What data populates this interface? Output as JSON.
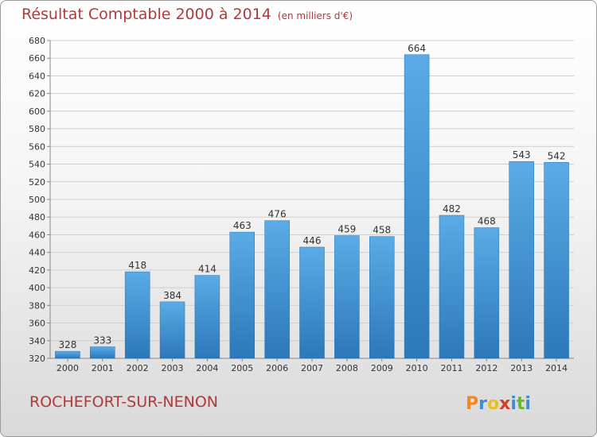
{
  "header": {
    "title": "Résultat Comptable 2000 à 2014",
    "subtitle": "(en milliers d'€)"
  },
  "footer": {
    "commune": "ROCHEFORT-SUR-NENON",
    "logo": "Proxiti"
  },
  "colors": {
    "bar_light": "#5fb0ea",
    "bar_dark": "#2f7fc0",
    "title": "#b03a3a"
  },
  "chart_data": {
    "type": "bar",
    "title": "Résultat Comptable 2000 à 2014",
    "subtitle": "(en milliers d'€)",
    "categories": [
      "2000",
      "2001",
      "2002",
      "2003",
      "2004",
      "2005",
      "2006",
      "2007",
      "2008",
      "2009",
      "2010",
      "2011",
      "2012",
      "2013",
      "2014"
    ],
    "values": [
      328,
      333,
      418,
      384,
      414,
      463,
      476,
      446,
      459,
      458,
      664,
      482,
      468,
      543,
      542
    ],
    "ylim": [
      320,
      680
    ],
    "yticks": [
      320,
      340,
      360,
      380,
      400,
      420,
      440,
      460,
      480,
      500,
      520,
      540,
      560,
      580,
      600,
      620,
      640,
      660,
      680
    ],
    "grid": true,
    "legend": "none"
  }
}
